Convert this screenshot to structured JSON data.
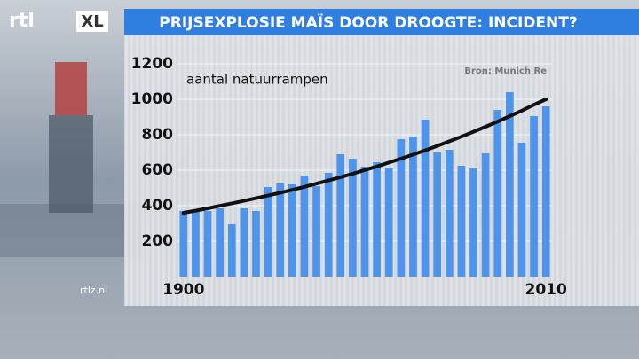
{
  "logo": {
    "main": "rtl",
    "badge": "XL"
  },
  "watermark": "rtlz.nl",
  "chart_data": {
    "type": "bar",
    "title": "PRIJSEXPLOSIE MAÏS DOOR DROOGTE: INCIDENT?",
    "subtitle": "aantal natuurrampen",
    "source": "Bron: Munich Re",
    "categories": [
      "1900",
      null,
      null,
      null,
      null,
      null,
      null,
      null,
      null,
      null,
      null,
      null,
      null,
      null,
      null,
      null,
      null,
      null,
      null,
      null,
      null,
      null,
      null,
      null,
      null,
      null,
      null,
      null,
      null,
      null,
      "2010"
    ],
    "series": [
      {
        "type": "bar",
        "color": "#4d94ea",
        "values": [
          370,
          370,
          370,
          385,
          295,
          385,
          370,
          505,
          525,
          520,
          570,
          510,
          585,
          690,
          665,
          620,
          645,
          615,
          775,
          790,
          885,
          700,
          715,
          625,
          610,
          695,
          940,
          1040,
          755,
          905,
          960
        ]
      },
      {
        "type": "line",
        "color": "#111111",
        "values": [
          360,
          372,
          385,
          399,
          413,
          427,
          442,
          457,
          473,
          489,
          506,
          524,
          542,
          561,
          580,
          601,
          621,
          643,
          665,
          688,
          712,
          737,
          763,
          789,
          817,
          845,
          874,
          905,
          936,
          969,
          1000
        ]
      }
    ],
    "ylim": [
      0,
      1200
    ],
    "yticks": [
      200,
      400,
      600,
      800,
      1000,
      1200
    ],
    "grid": true
  }
}
